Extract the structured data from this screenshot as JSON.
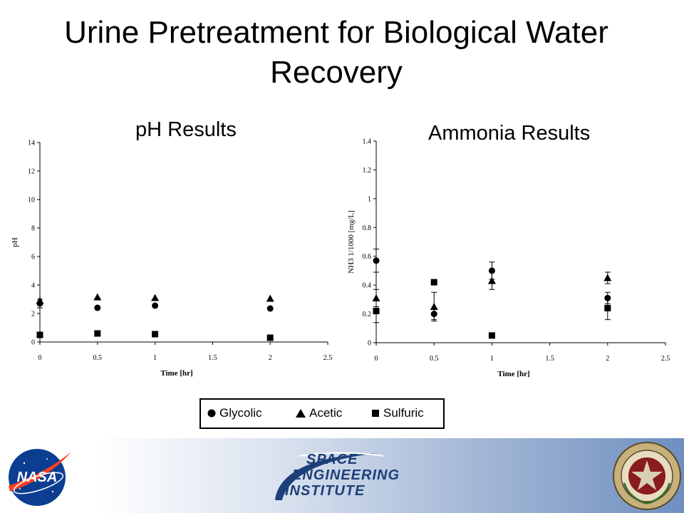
{
  "slide": {
    "title": "Urine Pretreatment for Biological Water Recovery"
  },
  "legend": {
    "items": [
      {
        "label": "Glycolic",
        "marker": "circle"
      },
      {
        "label": "Acetic",
        "marker": "triangle"
      },
      {
        "label": "Sulfuric",
        "marker": "square"
      }
    ]
  },
  "footer": {
    "left_logo": {
      "text": "NASA",
      "icon": "nasa-meatball-icon"
    },
    "center_logo": {
      "line1": "SPACE",
      "line2": "ENGINEERING",
      "line3": "INSTITUTE",
      "icon": "space-engineering-institute-logo"
    },
    "right_logo": {
      "icon": "texas-am-university-seal-icon"
    }
  },
  "chart_data": [
    {
      "type": "scatter",
      "subtitle": "pH Results",
      "xlabel": "Time [hr]",
      "ylabel": "pH",
      "xlim": [
        0,
        2.5
      ],
      "ylim": [
        0,
        14
      ],
      "xticks": [
        "0",
        "0.5",
        "1",
        "1.5",
        "2",
        "2.5"
      ],
      "yticks": [
        "0",
        "2",
        "4",
        "6",
        "8",
        "10",
        "12",
        "14"
      ],
      "series": [
        {
          "name": "Glycolic",
          "marker": "circle",
          "x": [
            0,
            0.5,
            1,
            2
          ],
          "y": [
            2.7,
            2.4,
            2.55,
            2.35
          ],
          "err": [
            0.3,
            0,
            0,
            0
          ]
        },
        {
          "name": "Acetic",
          "marker": "triangle",
          "x": [
            0,
            0.5,
            1,
            2
          ],
          "y": [
            2.9,
            3.15,
            3.1,
            3.05
          ],
          "err": [
            0,
            0,
            0,
            0
          ]
        },
        {
          "name": "Sulfuric",
          "marker": "square",
          "x": [
            0,
            0.5,
            1,
            2
          ],
          "y": [
            0.5,
            0.6,
            0.55,
            0.3
          ],
          "err": [
            0,
            0,
            0,
            0
          ]
        }
      ]
    },
    {
      "type": "scatter",
      "subtitle": "Ammonia Results",
      "xlabel": "Time [hr]",
      "ylabel": "NH3 1/1000 [mg/L]",
      "xlim": [
        0,
        2.5
      ],
      "ylim": [
        0,
        1.4
      ],
      "xticks": [
        "0",
        "0.5",
        "1",
        "1.5",
        "2",
        "2.5"
      ],
      "yticks": [
        "0",
        "0.2",
        "0.4",
        "0.6",
        "0.8",
        "1",
        "1.2",
        "1.4"
      ],
      "series": [
        {
          "name": "Glycolic",
          "marker": "circle",
          "x": [
            0,
            0.5,
            1,
            2
          ],
          "y": [
            0.57,
            0.2,
            0.5,
            0.31
          ],
          "err": [
            0.08,
            0.04,
            0.06,
            0.04
          ]
        },
        {
          "name": "Acetic",
          "marker": "triangle",
          "x": [
            0,
            0.5,
            1,
            2
          ],
          "y": [
            0.31,
            0.25,
            0.43,
            0.45
          ],
          "err": [
            0.06,
            0.1,
            0.06,
            0.04
          ]
        },
        {
          "name": "Sulfuric",
          "marker": "square",
          "x": [
            0,
            0.5,
            1,
            2
          ],
          "y": [
            0.22,
            0.42,
            0.05,
            0.24
          ],
          "err": [
            0.08,
            0,
            0,
            0.08
          ]
        }
      ]
    }
  ]
}
